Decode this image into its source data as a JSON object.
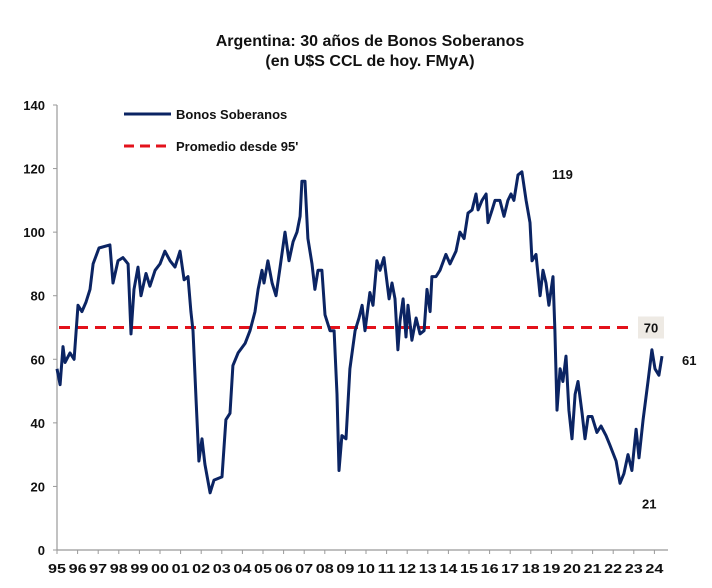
{
  "chart_data": {
    "type": "line",
    "title": "Argentina: 30 años de Bonos Soberanos",
    "subtitle": "(en U$S CCL de hoy. FMyA)",
    "xlabel": "",
    "ylabel": "",
    "ylim": [
      0,
      140
    ],
    "yticks": [
      0,
      20,
      40,
      60,
      80,
      100,
      120,
      140
    ],
    "xlim": [
      1995,
      2025
    ],
    "xtick_labels": [
      "95",
      "96",
      "97",
      "98",
      "99",
      "00",
      "01",
      "02",
      "03",
      "04",
      "05",
      "06",
      "07",
      "08",
      "09",
      "10",
      "11",
      "12",
      "13",
      "14",
      "15",
      "16",
      "17",
      "18",
      "19",
      "20",
      "21",
      "22",
      "23",
      "24"
    ],
    "grid": false,
    "legend_placement": "top-left",
    "colors": {
      "series": "#0b2463",
      "average": "#e3121b",
      "label_box": "#eeeae4"
    },
    "series": [
      {
        "name": "Bonos Soberanos",
        "style": "solid",
        "points": [
          [
            1995.0,
            57
          ],
          [
            1995.15,
            52
          ],
          [
            1995.29,
            64
          ],
          [
            1995.39,
            59
          ],
          [
            1995.63,
            62
          ],
          [
            1995.83,
            60
          ],
          [
            1996.02,
            77
          ],
          [
            1996.21,
            75
          ],
          [
            1996.41,
            78
          ],
          [
            1996.6,
            82
          ],
          [
            1996.75,
            90
          ],
          [
            1997.04,
            95
          ],
          [
            1997.57,
            96
          ],
          [
            1997.72,
            84
          ],
          [
            1997.96,
            91
          ],
          [
            1998.2,
            92
          ],
          [
            1998.45,
            90
          ],
          [
            1998.59,
            68
          ],
          [
            1998.74,
            82
          ],
          [
            1998.93,
            89
          ],
          [
            1999.08,
            80
          ],
          [
            1999.32,
            87
          ],
          [
            1999.51,
            83
          ],
          [
            1999.76,
            88
          ],
          [
            2000.0,
            90
          ],
          [
            2000.24,
            94
          ],
          [
            2000.49,
            91
          ],
          [
            2000.73,
            89
          ],
          [
            2000.97,
            94
          ],
          [
            2001.17,
            85
          ],
          [
            2001.36,
            86
          ],
          [
            2001.5,
            75
          ],
          [
            2001.6,
            69
          ],
          [
            2001.75,
            47
          ],
          [
            2001.89,
            28
          ],
          [
            2002.04,
            35
          ],
          [
            2002.18,
            27
          ],
          [
            2002.43,
            18
          ],
          [
            2002.62,
            22
          ],
          [
            2003.01,
            23
          ],
          [
            2003.2,
            41
          ],
          [
            2003.4,
            43
          ],
          [
            2003.54,
            58
          ],
          [
            2003.79,
            62
          ],
          [
            2004.13,
            65
          ],
          [
            2004.37,
            69
          ],
          [
            2004.61,
            75
          ],
          [
            2004.76,
            82
          ],
          [
            2004.95,
            88
          ],
          [
            2005.05,
            84
          ],
          [
            2005.24,
            91
          ],
          [
            2005.44,
            84
          ],
          [
            2005.63,
            80
          ],
          [
            2005.83,
            89
          ],
          [
            2006.07,
            100
          ],
          [
            2006.26,
            91
          ],
          [
            2006.46,
            97
          ],
          [
            2006.65,
            100
          ],
          [
            2006.8,
            105
          ],
          [
            2006.89,
            116
          ],
          [
            2007.04,
            116
          ],
          [
            2007.18,
            98
          ],
          [
            2007.38,
            90
          ],
          [
            2007.52,
            82
          ],
          [
            2007.67,
            88
          ],
          [
            2007.86,
            88
          ],
          [
            2008.01,
            74
          ],
          [
            2008.25,
            69
          ],
          [
            2008.45,
            69
          ],
          [
            2008.59,
            49
          ],
          [
            2008.69,
            25
          ],
          [
            2008.83,
            36
          ],
          [
            2009.03,
            35
          ],
          [
            2009.22,
            57
          ],
          [
            2009.47,
            69
          ],
          [
            2009.66,
            73
          ],
          [
            2009.81,
            77
          ],
          [
            2009.95,
            69
          ],
          [
            2010.19,
            81
          ],
          [
            2010.34,
            77
          ],
          [
            2010.53,
            91
          ],
          [
            2010.68,
            88
          ],
          [
            2010.87,
            92
          ],
          [
            2011.12,
            79
          ],
          [
            2011.26,
            84
          ],
          [
            2011.41,
            79
          ],
          [
            2011.55,
            63
          ],
          [
            2011.65,
            72
          ],
          [
            2011.8,
            79
          ],
          [
            2011.94,
            67
          ],
          [
            2012.04,
            77
          ],
          [
            2012.23,
            66
          ],
          [
            2012.43,
            73
          ],
          [
            2012.62,
            68
          ],
          [
            2012.82,
            69
          ],
          [
            2012.96,
            82
          ],
          [
            2013.11,
            75
          ],
          [
            2013.2,
            86
          ],
          [
            2013.4,
            86
          ],
          [
            2013.59,
            88
          ],
          [
            2013.88,
            93
          ],
          [
            2014.08,
            90
          ],
          [
            2014.37,
            94
          ],
          [
            2014.56,
            100
          ],
          [
            2014.76,
            98
          ],
          [
            2014.95,
            106
          ],
          [
            2015.15,
            107
          ],
          [
            2015.34,
            112
          ],
          [
            2015.44,
            107
          ],
          [
            2015.63,
            110
          ],
          [
            2015.83,
            112
          ],
          [
            2015.92,
            103
          ],
          [
            2016.12,
            107
          ],
          [
            2016.26,
            110
          ],
          [
            2016.5,
            110
          ],
          [
            2016.7,
            105
          ],
          [
            2016.89,
            110
          ],
          [
            2017.04,
            112
          ],
          [
            2017.18,
            110
          ],
          [
            2017.38,
            118
          ],
          [
            2017.57,
            119
          ],
          [
            2017.77,
            110
          ],
          [
            2017.96,
            103
          ],
          [
            2018.06,
            91
          ],
          [
            2018.25,
            93
          ],
          [
            2018.45,
            80
          ],
          [
            2018.59,
            88
          ],
          [
            2018.74,
            84
          ],
          [
            2018.88,
            77
          ],
          [
            2019.08,
            86
          ],
          [
            2019.17,
            69
          ],
          [
            2019.27,
            44
          ],
          [
            2019.42,
            57
          ],
          [
            2019.56,
            53
          ],
          [
            2019.71,
            61
          ],
          [
            2019.85,
            44
          ],
          [
            2020.0,
            35
          ],
          [
            2020.15,
            49
          ],
          [
            2020.29,
            53
          ],
          [
            2020.49,
            43
          ],
          [
            2020.63,
            35
          ],
          [
            2020.78,
            42
          ],
          [
            2020.97,
            42
          ],
          [
            2021.21,
            37
          ],
          [
            2021.41,
            39
          ],
          [
            2021.65,
            36
          ],
          [
            2021.84,
            33
          ],
          [
            2022.14,
            28
          ],
          [
            2022.33,
            21
          ],
          [
            2022.52,
            24
          ],
          [
            2022.72,
            30
          ],
          [
            2022.91,
            25
          ],
          [
            2023.11,
            38
          ],
          [
            2023.25,
            29
          ],
          [
            2023.45,
            41
          ],
          [
            2023.69,
            53
          ],
          [
            2023.88,
            63
          ],
          [
            2024.03,
            57
          ],
          [
            2024.22,
            55
          ],
          [
            2024.37,
            61
          ]
        ]
      },
      {
        "name": "Promedio desde 95'",
        "style": "dashed",
        "value": 70
      }
    ],
    "annotations": [
      {
        "text": "119",
        "x": 2017.57,
        "y": 119
      },
      {
        "text": "70",
        "x": 2025.1,
        "y": 70
      },
      {
        "text": "61",
        "x": 2024.37,
        "y": 61
      },
      {
        "text": "21",
        "x": 2022.33,
        "y": 21
      }
    ]
  }
}
